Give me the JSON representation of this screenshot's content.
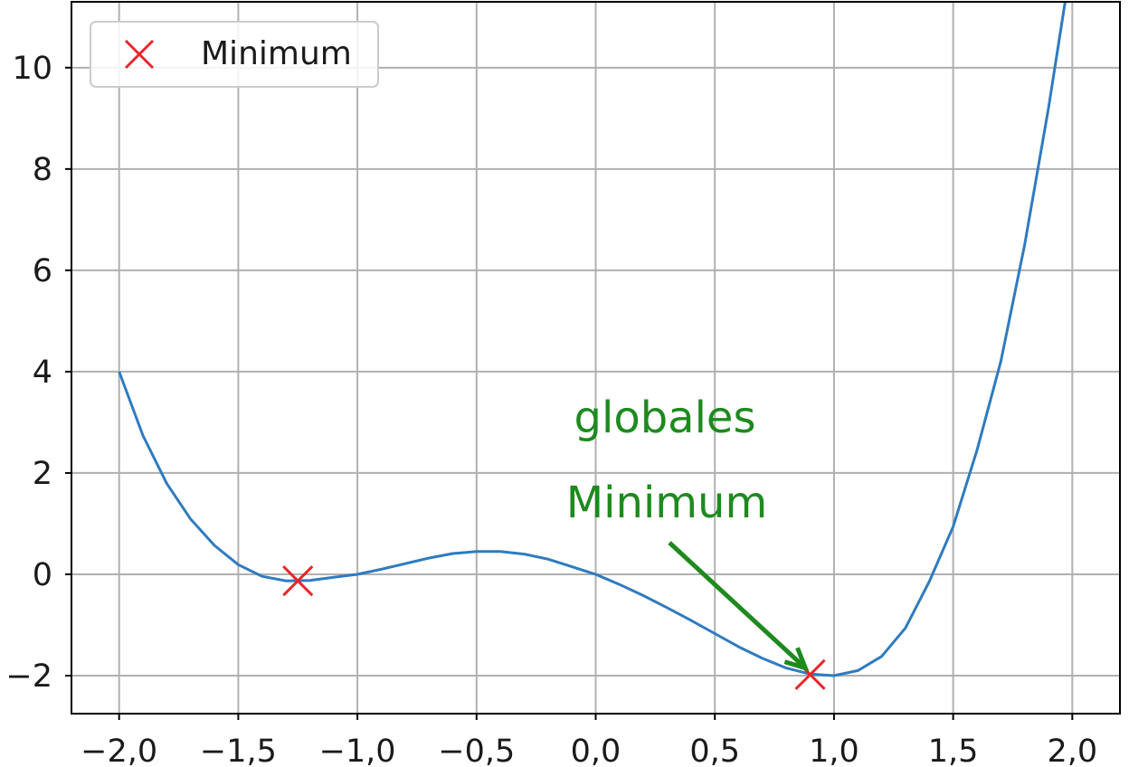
{
  "chart_data": {
    "type": "line",
    "title": "",
    "xlabel": "",
    "ylabel": "",
    "xlim": [
      -2.2,
      2.2
    ],
    "ylim": [
      -2.75,
      11.3
    ],
    "x_ticks": [
      -2.0,
      -1.5,
      -1.0,
      -0.5,
      0.0,
      0.5,
      1.0,
      1.5,
      2.0
    ],
    "x_tick_labels": [
      "−2,0",
      "−1,5",
      "−1,0",
      "−0,5",
      "0,0",
      "0,5",
      "1,0",
      "1,5",
      "2,0"
    ],
    "y_ticks": [
      -2,
      0,
      2,
      4,
      6,
      8,
      10
    ],
    "y_tick_labels": [
      "−2",
      "0",
      "2",
      "4",
      "6",
      "8",
      "10"
    ],
    "grid": true,
    "legend": {
      "position": "top-left",
      "entries": [
        {
          "label": "Minimum",
          "marker": "x",
          "color": "#e8262a"
        }
      ]
    },
    "series": [
      {
        "color": "#2f7bbf",
        "points": [
          [
            -2.0,
            4.0
          ],
          [
            -1.9,
            2.74
          ],
          [
            -1.8,
            1.79
          ],
          [
            -1.7,
            1.09
          ],
          [
            -1.6,
            0.57
          ],
          [
            -1.5,
            0.19
          ],
          [
            -1.4,
            -0.04
          ],
          [
            -1.3,
            -0.13
          ],
          [
            -1.2,
            -0.12
          ],
          [
            -1.1,
            -0.06
          ],
          [
            -1.0,
            0.0
          ],
          [
            -0.9,
            0.1
          ],
          [
            -0.8,
            0.21
          ],
          [
            -0.7,
            0.32
          ],
          [
            -0.6,
            0.41
          ],
          [
            -0.5,
            0.45
          ],
          [
            -0.4,
            0.45
          ],
          [
            -0.3,
            0.4
          ],
          [
            -0.2,
            0.3
          ],
          [
            -0.1,
            0.15
          ],
          [
            0.0,
            0.0
          ],
          [
            0.1,
            -0.2
          ],
          [
            0.2,
            -0.42
          ],
          [
            0.3,
            -0.66
          ],
          [
            0.4,
            -0.91
          ],
          [
            0.5,
            -1.17
          ],
          [
            0.6,
            -1.43
          ],
          [
            0.7,
            -1.66
          ],
          [
            0.8,
            -1.85
          ],
          [
            0.9,
            -1.97
          ],
          [
            1.0,
            -2.0
          ],
          [
            1.1,
            -1.9
          ],
          [
            1.2,
            -1.62
          ],
          [
            1.3,
            -1.06
          ],
          [
            1.4,
            -0.14
          ],
          [
            1.5,
            0.94
          ],
          [
            1.6,
            2.45
          ],
          [
            1.7,
            4.2
          ],
          [
            1.8,
            6.5
          ],
          [
            1.9,
            9.2
          ],
          [
            1.97,
            11.3
          ]
        ]
      }
    ],
    "minima": [
      {
        "x": -1.25,
        "y": -0.13
      },
      {
        "x": 0.9,
        "y": -1.98
      }
    ],
    "annotation": {
      "lines": [
        "globales",
        "Minimum"
      ],
      "color": "#1e8a1e",
      "points_to": {
        "x": 0.88,
        "y": -1.85
      }
    }
  }
}
